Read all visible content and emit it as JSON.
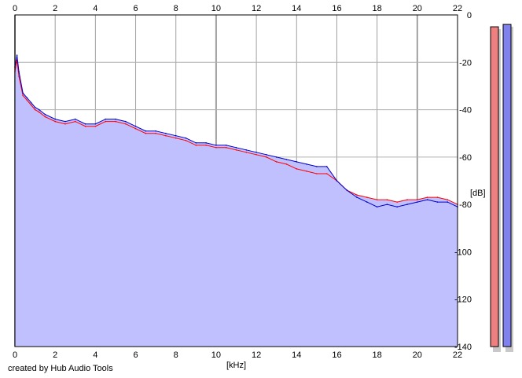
{
  "footer": "created by Hub Audio Tools",
  "chart_data": {
    "type": "area",
    "xlabel": "[kHz]",
    "ylabel": "[dB]",
    "xlim": [
      0,
      22
    ],
    "ylim": [
      -140,
      0
    ],
    "x_ticks": [
      0,
      2,
      4,
      6,
      8,
      10,
      12,
      14,
      16,
      18,
      20,
      22
    ],
    "y_ticks": [
      0,
      -20,
      -40,
      -60,
      -80,
      -100,
      -120,
      -140
    ],
    "y_tick_labels": [
      "0",
      "-20",
      "-40",
      "-60",
      "-80",
      "-100",
      "-120",
      "-140"
    ],
    "grid": true,
    "fill_color": "#c0c0ff",
    "series": [
      {
        "channel": "left",
        "color": "#ff0000",
        "x": [
          0,
          0.1,
          0.2,
          0.4,
          0.6,
          0.8,
          1.0,
          1.2,
          1.5,
          2.0,
          2.5,
          3.0,
          3.5,
          4.0,
          4.5,
          5.0,
          5.5,
          6.0,
          6.5,
          7.0,
          7.5,
          8.0,
          8.5,
          9.0,
          9.5,
          10.0,
          10.5,
          11.0,
          11.5,
          12.0,
          12.5,
          13.0,
          13.5,
          14.0,
          14.5,
          15.0,
          15.5,
          16.0,
          16.5,
          17.0,
          17.5,
          18.0,
          18.5,
          19.0,
          19.5,
          20.0,
          20.5,
          21.0,
          21.5,
          22.0
        ],
        "y": [
          -24,
          -19,
          -26,
          -34,
          -36,
          -38,
          -40,
          -41,
          -43,
          -45,
          -46,
          -45,
          -47,
          -47,
          -45,
          -45,
          -46,
          -48,
          -50,
          -50,
          -51,
          -52,
          -53,
          -55,
          -55,
          -56,
          -56,
          -57,
          -58,
          -59,
          -60,
          -62,
          -63,
          -65,
          -66,
          -67,
          -67,
          -70,
          -74,
          -76,
          -77,
          -78,
          -78,
          -79,
          -78,
          -78,
          -77,
          -77,
          -78,
          -80
        ]
      },
      {
        "channel": "right",
        "color": "#0000cc",
        "x": [
          0,
          0.1,
          0.2,
          0.4,
          0.6,
          0.8,
          1.0,
          1.2,
          1.5,
          2.0,
          2.5,
          3.0,
          3.5,
          4.0,
          4.5,
          5.0,
          5.5,
          6.0,
          6.5,
          7.0,
          7.5,
          8.0,
          8.5,
          9.0,
          9.5,
          10.0,
          10.5,
          11.0,
          11.5,
          12.0,
          12.5,
          13.0,
          13.5,
          14.0,
          14.5,
          15.0,
          15.5,
          16.0,
          16.5,
          17.0,
          17.5,
          18.0,
          18.5,
          19.0,
          19.5,
          20.0,
          20.5,
          21.0,
          21.5,
          22.0
        ],
        "y": [
          -22,
          -17,
          -24,
          -33,
          -35,
          -37,
          -39,
          -40,
          -42,
          -44,
          -45,
          -44,
          -46,
          -46,
          -44,
          -44,
          -45,
          -47,
          -49,
          -49,
          -50,
          -51,
          -52,
          -54,
          -54,
          -55,
          -55,
          -56,
          -57,
          -58,
          -59,
          -60,
          -61,
          -62,
          -63,
          -64,
          -64,
          -70,
          -74,
          -77,
          -79,
          -81,
          -80,
          -81,
          -80,
          -79,
          -78,
          -79,
          -79,
          -81
        ]
      }
    ],
    "level_meters": [
      {
        "channel": "left",
        "color": "#ef8080",
        "value_db": -5
      },
      {
        "channel": "right",
        "color": "#8080ef",
        "value_db": -4
      }
    ]
  }
}
